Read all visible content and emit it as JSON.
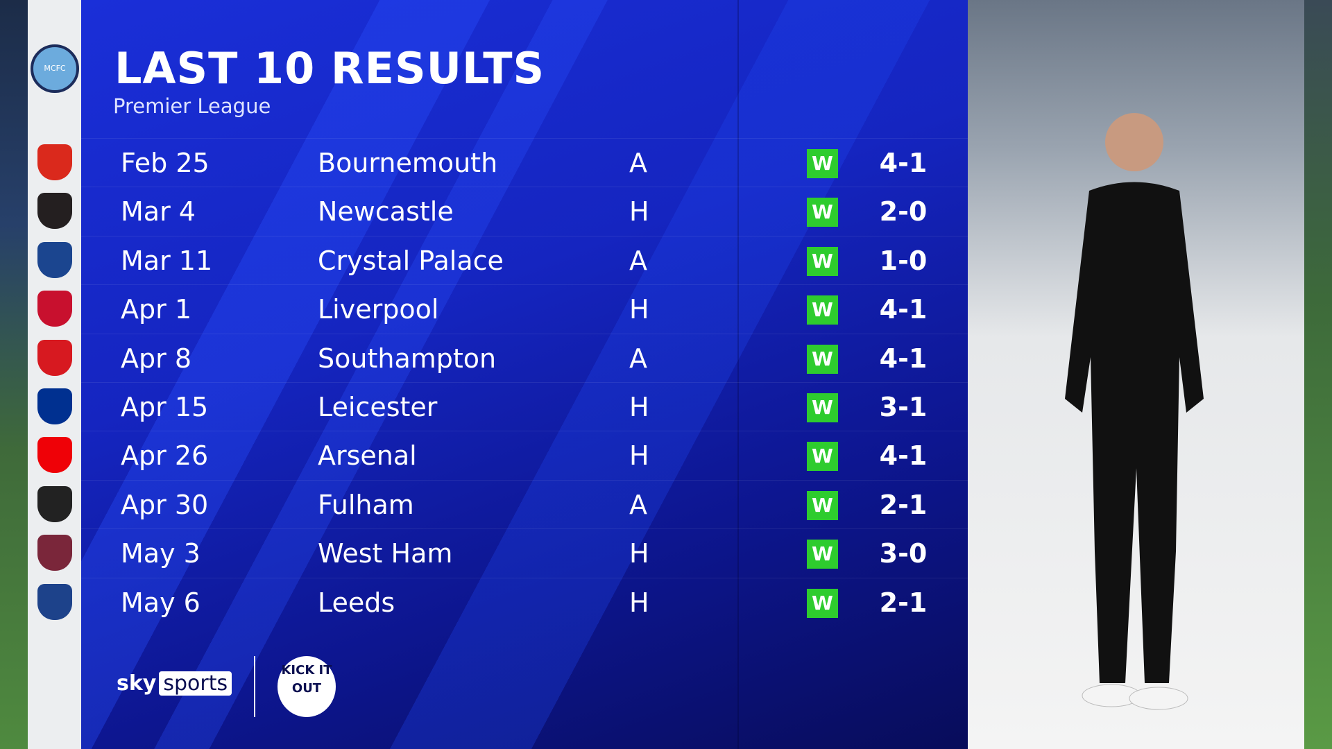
{
  "header": {
    "title": "LAST 10 RESULTS",
    "subtitle": "Premier League"
  },
  "team_crest": {
    "name": "Manchester City",
    "label": "MCFC",
    "color": "#6cabdd"
  },
  "results": [
    {
      "date": "Feb 25",
      "opponent": "Bournemouth",
      "venue": "A",
      "outcome": "W",
      "score": "4-1",
      "crest_color": "#da291c"
    },
    {
      "date": "Mar 4",
      "opponent": "Newcastle",
      "venue": "H",
      "outcome": "W",
      "score": "2-0",
      "crest_color": "#241f20"
    },
    {
      "date": "Mar 11",
      "opponent": "Crystal Palace",
      "venue": "A",
      "outcome": "W",
      "score": "1-0",
      "crest_color": "#1b458f"
    },
    {
      "date": "Apr 1",
      "opponent": "Liverpool",
      "venue": "H",
      "outcome": "W",
      "score": "4-1",
      "crest_color": "#c8102e"
    },
    {
      "date": "Apr 8",
      "opponent": "Southampton",
      "venue": "A",
      "outcome": "W",
      "score": "4-1",
      "crest_color": "#d71920"
    },
    {
      "date": "Apr 15",
      "opponent": "Leicester",
      "venue": "H",
      "outcome": "W",
      "score": "3-1",
      "crest_color": "#003090"
    },
    {
      "date": "Apr 26",
      "opponent": "Arsenal",
      "venue": "H",
      "outcome": "W",
      "score": "4-1",
      "crest_color": "#ef0107"
    },
    {
      "date": "Apr 30",
      "opponent": "Fulham",
      "venue": "A",
      "outcome": "W",
      "score": "2-1",
      "crest_color": "#222222"
    },
    {
      "date": "May 3",
      "opponent": "West Ham",
      "venue": "H",
      "outcome": "W",
      "score": "3-0",
      "crest_color": "#7a263a"
    },
    {
      "date": "May 6",
      "opponent": "Leeds",
      "venue": "H",
      "outcome": "W",
      "score": "2-1",
      "crest_color": "#1d428a"
    }
  ],
  "colors": {
    "win": "#2ecc2e",
    "panel": "#1525c0"
  },
  "footer": {
    "sky": "sky",
    "sports": "sports",
    "kick_it_out": "KICK IT OUT"
  }
}
